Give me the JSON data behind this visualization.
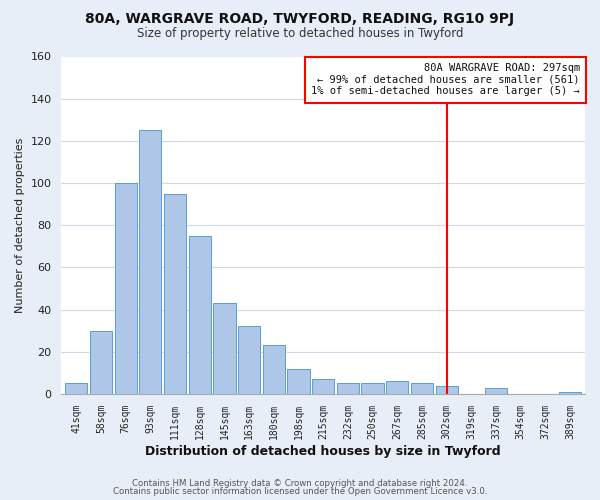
{
  "title1": "80A, WARGRAVE ROAD, TWYFORD, READING, RG10 9PJ",
  "title2": "Size of property relative to detached houses in Twyford",
  "xlabel": "Distribution of detached houses by size in Twyford",
  "ylabel": "Number of detached properties",
  "footer1": "Contains HM Land Registry data © Crown copyright and database right 2024.",
  "footer2": "Contains public sector information licensed under the Open Government Licence v3.0.",
  "bin_labels": [
    "41sqm",
    "58sqm",
    "76sqm",
    "93sqm",
    "111sqm",
    "128sqm",
    "145sqm",
    "163sqm",
    "180sqm",
    "198sqm",
    "215sqm",
    "232sqm",
    "250sqm",
    "267sqm",
    "285sqm",
    "302sqm",
    "319sqm",
    "337sqm",
    "354sqm",
    "372sqm",
    "389sqm"
  ],
  "bar_heights": [
    5,
    30,
    100,
    125,
    95,
    75,
    43,
    32,
    23,
    12,
    7,
    5,
    5,
    6,
    5,
    4,
    0,
    3,
    0,
    0,
    1
  ],
  "bar_color": "#aec6e8",
  "bar_edge_color": "#5a9fd4",
  "vline_color": "red",
  "vline_index": 15,
  "annotation_title": "80A WARGRAVE ROAD: 297sqm",
  "annotation_line1": "← 99% of detached houses are smaller (561)",
  "annotation_line2": "1% of semi-detached houses are larger (5) →",
  "annotation_box_color": "white",
  "annotation_box_edge": "red",
  "ylim": [
    0,
    160
  ],
  "bg_color": "#e8eef7",
  "plot_bg_color": "#ffffff",
  "grid_color": "#d0d8e8"
}
